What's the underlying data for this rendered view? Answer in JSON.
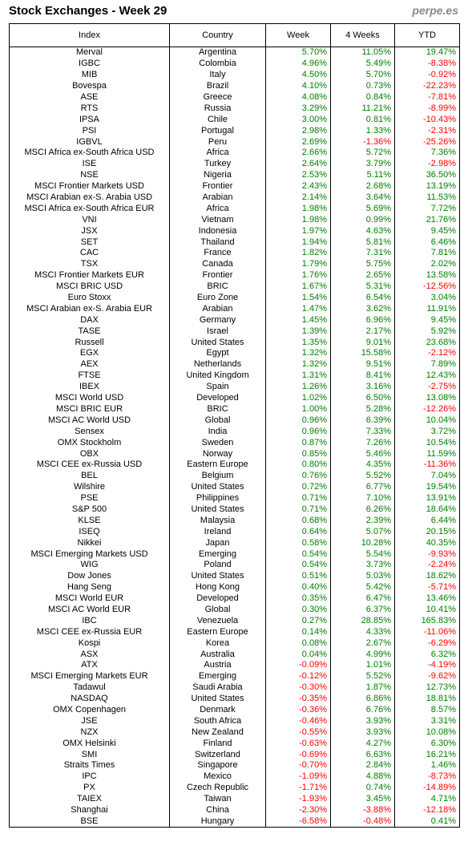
{
  "header": {
    "title": "Stock Exchanges - Week 29",
    "brand": "perpe.es"
  },
  "columns": [
    "Index",
    "Country",
    "Week",
    "4 Weeks",
    "YTD"
  ],
  "colors": {
    "positive": "#008000",
    "negative": "#ff0000"
  },
  "rows": [
    [
      "Merval",
      "Argentina",
      "5.70%",
      "11.05%",
      "19.47%"
    ],
    [
      "IGBC",
      "Colombia",
      "4.96%",
      "5.49%",
      "-8.38%"
    ],
    [
      "MIB",
      "Italy",
      "4.50%",
      "5.70%",
      "-0.92%"
    ],
    [
      "Bovespa",
      "Brazil",
      "4.10%",
      "0.73%",
      "-22.23%"
    ],
    [
      "ASE",
      "Greece",
      "4.08%",
      "0.84%",
      "-7.81%"
    ],
    [
      "RTS",
      "Russia",
      "3.29%",
      "11.21%",
      "-8.99%"
    ],
    [
      "IPSA",
      "Chile",
      "3.00%",
      "0.81%",
      "-10.43%"
    ],
    [
      "PSI",
      "Portugal",
      "2.98%",
      "1.33%",
      "-2.31%"
    ],
    [
      "IGBVL",
      "Peru",
      "2.69%",
      "-1.36%",
      "-25.26%"
    ],
    [
      "MSCI Africa ex-South Africa USD",
      "Africa",
      "2.66%",
      "5.72%",
      "7.36%"
    ],
    [
      "ISE",
      "Turkey",
      "2.64%",
      "3.79%",
      "-2.98%"
    ],
    [
      "NSE",
      "Nigeria",
      "2.53%",
      "5.11%",
      "36.50%"
    ],
    [
      "MSCI Frontier Markets USD",
      "Frontier",
      "2.43%",
      "2.68%",
      "13.19%"
    ],
    [
      "MSCI Arabian ex-S. Arabia USD",
      "Arabian",
      "2.14%",
      "3.64%",
      "11.53%"
    ],
    [
      "MSCI Africa ex-South Africa EUR",
      "Africa",
      "1.98%",
      "5.69%",
      "7.72%"
    ],
    [
      "VNI",
      "Vietnam",
      "1.98%",
      "0.99%",
      "21.76%"
    ],
    [
      "JSX",
      "Indonesia",
      "1.97%",
      "4.63%",
      "9.45%"
    ],
    [
      "SET",
      "Thailand",
      "1.94%",
      "5.81%",
      "6.46%"
    ],
    [
      "CAC",
      "France",
      "1.82%",
      "7.31%",
      "7.81%"
    ],
    [
      "TSX",
      "Canada",
      "1.79%",
      "5.75%",
      "2.02%"
    ],
    [
      "MSCI Frontier Markets EUR",
      "Frontier",
      "1.76%",
      "2.65%",
      "13.58%"
    ],
    [
      "MSCI BRIC USD",
      "BRIC",
      "1.67%",
      "5.31%",
      "-12.56%"
    ],
    [
      "Euro Stoxx",
      "Euro Zone",
      "1.54%",
      "6.54%",
      "3.04%"
    ],
    [
      "MSCI Arabian ex-S. Arabia EUR",
      "Arabian",
      "1.47%",
      "3.62%",
      "11.91%"
    ],
    [
      "DAX",
      "Germany",
      "1.45%",
      "6.96%",
      "9.45%"
    ],
    [
      "TASE",
      "Israel",
      "1.39%",
      "2.17%",
      "5.92%"
    ],
    [
      "Russell",
      "United States",
      "1.35%",
      "9.01%",
      "23.68%"
    ],
    [
      "EGX",
      "Egypt",
      "1.32%",
      "15.58%",
      "-2.12%"
    ],
    [
      "AEX",
      "Netherlands",
      "1.32%",
      "9.51%",
      "7.89%"
    ],
    [
      "FTSE",
      "United Kingdom",
      "1.31%",
      "8.41%",
      "12.43%"
    ],
    [
      "IBEX",
      "Spain",
      "1.26%",
      "3.16%",
      "-2.75%"
    ],
    [
      "MSCI World USD",
      "Developed",
      "1.02%",
      "6.50%",
      "13.08%"
    ],
    [
      "MSCI BRIC EUR",
      "BRIC",
      "1.00%",
      "5.28%",
      "-12.26%"
    ],
    [
      "MSCI AC World USD",
      "Global",
      "0.96%",
      "6.39%",
      "10.04%"
    ],
    [
      "Sensex",
      "India",
      "0.96%",
      "7.33%",
      "3.72%"
    ],
    [
      "OMX Stockholm",
      "Sweden",
      "0.87%",
      "7.26%",
      "10.54%"
    ],
    [
      "OBX",
      "Norway",
      "0.85%",
      "5.46%",
      "11.59%"
    ],
    [
      "MSCI CEE ex-Russia USD",
      "Eastern Europe",
      "0.80%",
      "4.35%",
      "-11.36%"
    ],
    [
      "BEL",
      "Belgium",
      "0.76%",
      "5.52%",
      "7.04%"
    ],
    [
      "Wilshire",
      "United States",
      "0.72%",
      "6.77%",
      "19.54%"
    ],
    [
      "PSE",
      "Philippines",
      "0.71%",
      "7.10%",
      "13.91%"
    ],
    [
      "S&P 500",
      "United States",
      "0.71%",
      "6.26%",
      "18.64%"
    ],
    [
      "KLSE",
      "Malaysia",
      "0.68%",
      "2.39%",
      "6.44%"
    ],
    [
      "ISEQ",
      "Ireland",
      "0.64%",
      "5.07%",
      "20.15%"
    ],
    [
      "Nikkei",
      "Japan",
      "0.58%",
      "10.28%",
      "40.35%"
    ],
    [
      "MSCI Emerging Markets USD",
      "Emerging",
      "0.54%",
      "5.54%",
      "-9.93%"
    ],
    [
      "WIG",
      "Poland",
      "0.54%",
      "3.73%",
      "-2.24%"
    ],
    [
      "Dow Jones",
      "United States",
      "0.51%",
      "5.03%",
      "18.62%"
    ],
    [
      "Hang Seng",
      "Hong Kong",
      "0.40%",
      "5.42%",
      "-5.71%"
    ],
    [
      "MSCI World EUR",
      "Developed",
      "0.35%",
      "6.47%",
      "13.46%"
    ],
    [
      "MSCI AC World EUR",
      "Global",
      "0.30%",
      "6.37%",
      "10.41%"
    ],
    [
      "IBC",
      "Venezuela",
      "0.27%",
      "28.85%",
      "165.83%"
    ],
    [
      "MSCI CEE ex-Russia EUR",
      "Eastern Europe",
      "0.14%",
      "4.33%",
      "-11.06%"
    ],
    [
      "Kospi",
      "Korea",
      "0.08%",
      "2.67%",
      "-6.29%"
    ],
    [
      "ASX",
      "Australia",
      "0.04%",
      "4.99%",
      "6.32%"
    ],
    [
      "ATX",
      "Austria",
      "-0.09%",
      "1.01%",
      "-4.19%"
    ],
    [
      "MSCI Emerging Markets EUR",
      "Emerging",
      "-0.12%",
      "5.52%",
      "-9.62%"
    ],
    [
      "Tadawul",
      "Saudi Arabia",
      "-0.30%",
      "1.87%",
      "12.73%"
    ],
    [
      "NASDAQ",
      "United States",
      "-0.35%",
      "6.86%",
      "18.81%"
    ],
    [
      "OMX Copenhagen",
      "Denmark",
      "-0.36%",
      "6.76%",
      "8.57%"
    ],
    [
      "JSE",
      "South Africa",
      "-0.46%",
      "3.93%",
      "3.31%"
    ],
    [
      "NZX",
      "New Zealand",
      "-0.55%",
      "3.93%",
      "10.08%"
    ],
    [
      "OMX Helsinki",
      "Finland",
      "-0.63%",
      "4.27%",
      "6.30%"
    ],
    [
      "SMI",
      "Switzerland",
      "-0.69%",
      "6.63%",
      "16.21%"
    ],
    [
      "Straits Times",
      "Singapore",
      "-0.70%",
      "2.84%",
      "1.46%"
    ],
    [
      "IPC",
      "Mexico",
      "-1.09%",
      "4.88%",
      "-8.73%"
    ],
    [
      "PX",
      "Czech Republic",
      "-1.71%",
      "0.74%",
      "-14.89%"
    ],
    [
      "TAIEX",
      "Taiwan",
      "-1.93%",
      "3.45%",
      "4.71%"
    ],
    [
      "Shanghai",
      "China",
      "-2.30%",
      "-3.88%",
      "-12.18%"
    ],
    [
      "BSE",
      "Hungary",
      "-6.58%",
      "-0.48%",
      "0.41%"
    ]
  ]
}
